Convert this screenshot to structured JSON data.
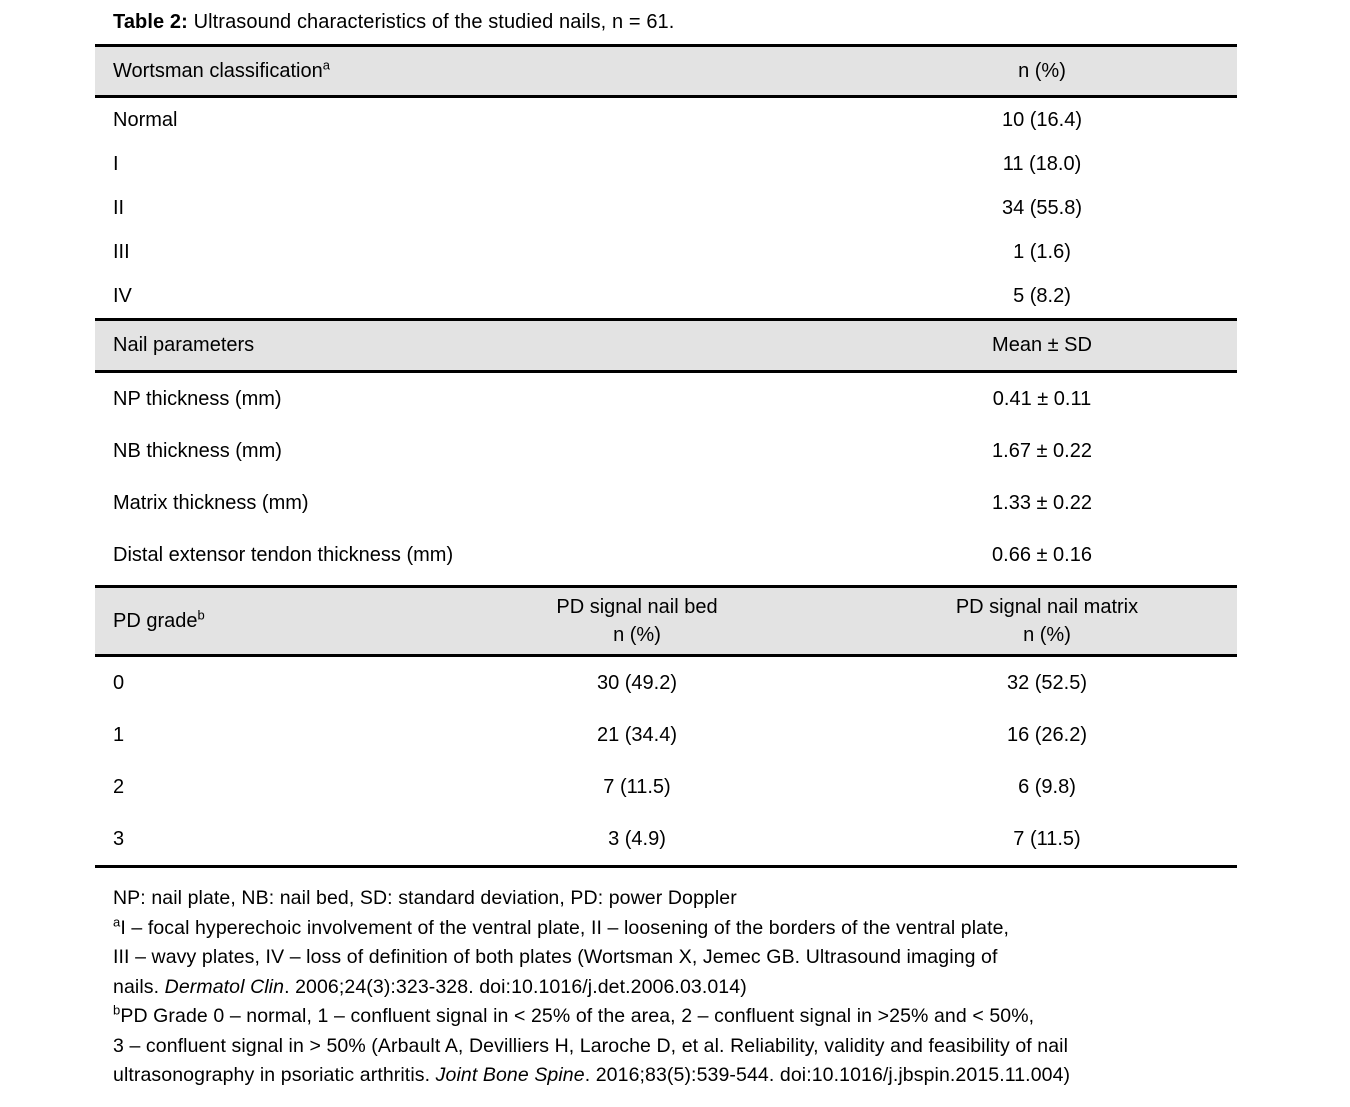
{
  "title": {
    "label": "Table 2:",
    "text": " Ultrasound characteristics of the studied nails, n = 61."
  },
  "wortsman": {
    "header": {
      "col1": "Wortsman classification",
      "col1_sup": "a",
      "col2": "n (%)"
    },
    "rows": [
      {
        "label": "Normal",
        "value": "10 (16.4)"
      },
      {
        "label": "I",
        "value": "11 (18.0)"
      },
      {
        "label": "II",
        "value": "34 (55.8)"
      },
      {
        "label": "III",
        "value": "1 (1.6)"
      },
      {
        "label": "IV",
        "value": "5 (8.2)"
      }
    ]
  },
  "nail_parameters": {
    "header": {
      "col1": "Nail parameters",
      "col2": "Mean ± SD"
    },
    "rows": [
      {
        "label": "NP thickness (mm)",
        "value": "0.41 ± 0.11"
      },
      {
        "label": "NB thickness (mm)",
        "value": "1.67 ± 0.22"
      },
      {
        "label": "Matrix thickness (mm)",
        "value": "1.33 ± 0.22"
      },
      {
        "label": "Distal extensor tendon thickness (mm)",
        "value": "0.66 ± 0.16"
      }
    ]
  },
  "pd_grade": {
    "header": {
      "col1": "PD grade",
      "col1_sup": "b",
      "col2_line1": "PD signal nail bed",
      "col2_line2": "n (%)",
      "col3_line1": "PD signal nail matrix",
      "col3_line2": "n (%)"
    },
    "rows": [
      {
        "grade": "0",
        "nail_bed": "30 (49.2)",
        "nail_matrix": "32 (52.5)"
      },
      {
        "grade": "1",
        "nail_bed": "21 (34.4)",
        "nail_matrix": "16 (26.2)"
      },
      {
        "grade": "2",
        "nail_bed": "7 (11.5)",
        "nail_matrix": "6 (9.8)"
      },
      {
        "grade": "3",
        "nail_bed": "3 (4.9)",
        "nail_matrix": "7 (11.5)"
      }
    ]
  },
  "footnotes": {
    "abbrev": "NP: nail plate, NB: nail bed, SD: standard deviation, PD: power Doppler",
    "a_sup": "a",
    "a_line1": "I – focal hyperechoic involvement of the ventral plate, II – loosening of the borders of the ventral plate,",
    "a_line2": "III – wavy plates, IV – loss of definition of both plates (Wortsman X, Jemec GB. Ultrasound imaging of",
    "a_line3_pre": "nails. ",
    "a_line3_italic": "Dermatol Clin",
    "a_line3_post": ". 2006;24(3):323-328. doi:10.1016/j.det.2006.03.014)",
    "b_sup": "b",
    "b_line1": "PD Grade 0 – normal, 1 – confluent signal in < 25% of the area, 2 – confluent signal in >25% and < 50%,",
    "b_line2": "3 – confluent signal in > 50% (Arbault A, Devilliers H, Laroche D, et al. Reliability, validity and feasibility of nail",
    "b_line3_pre": "ultrasonography in psoriatic arthritis. ",
    "b_line3_italic": "Joint Bone Spine",
    "b_line3_post": ". 2016;83(5):539-544. doi:10.1016/j.jbspin.2015.11.004)"
  },
  "colors": {
    "header_band": "#e3e3e3",
    "border": "#000000",
    "text": "#000000",
    "background": "#ffffff"
  }
}
